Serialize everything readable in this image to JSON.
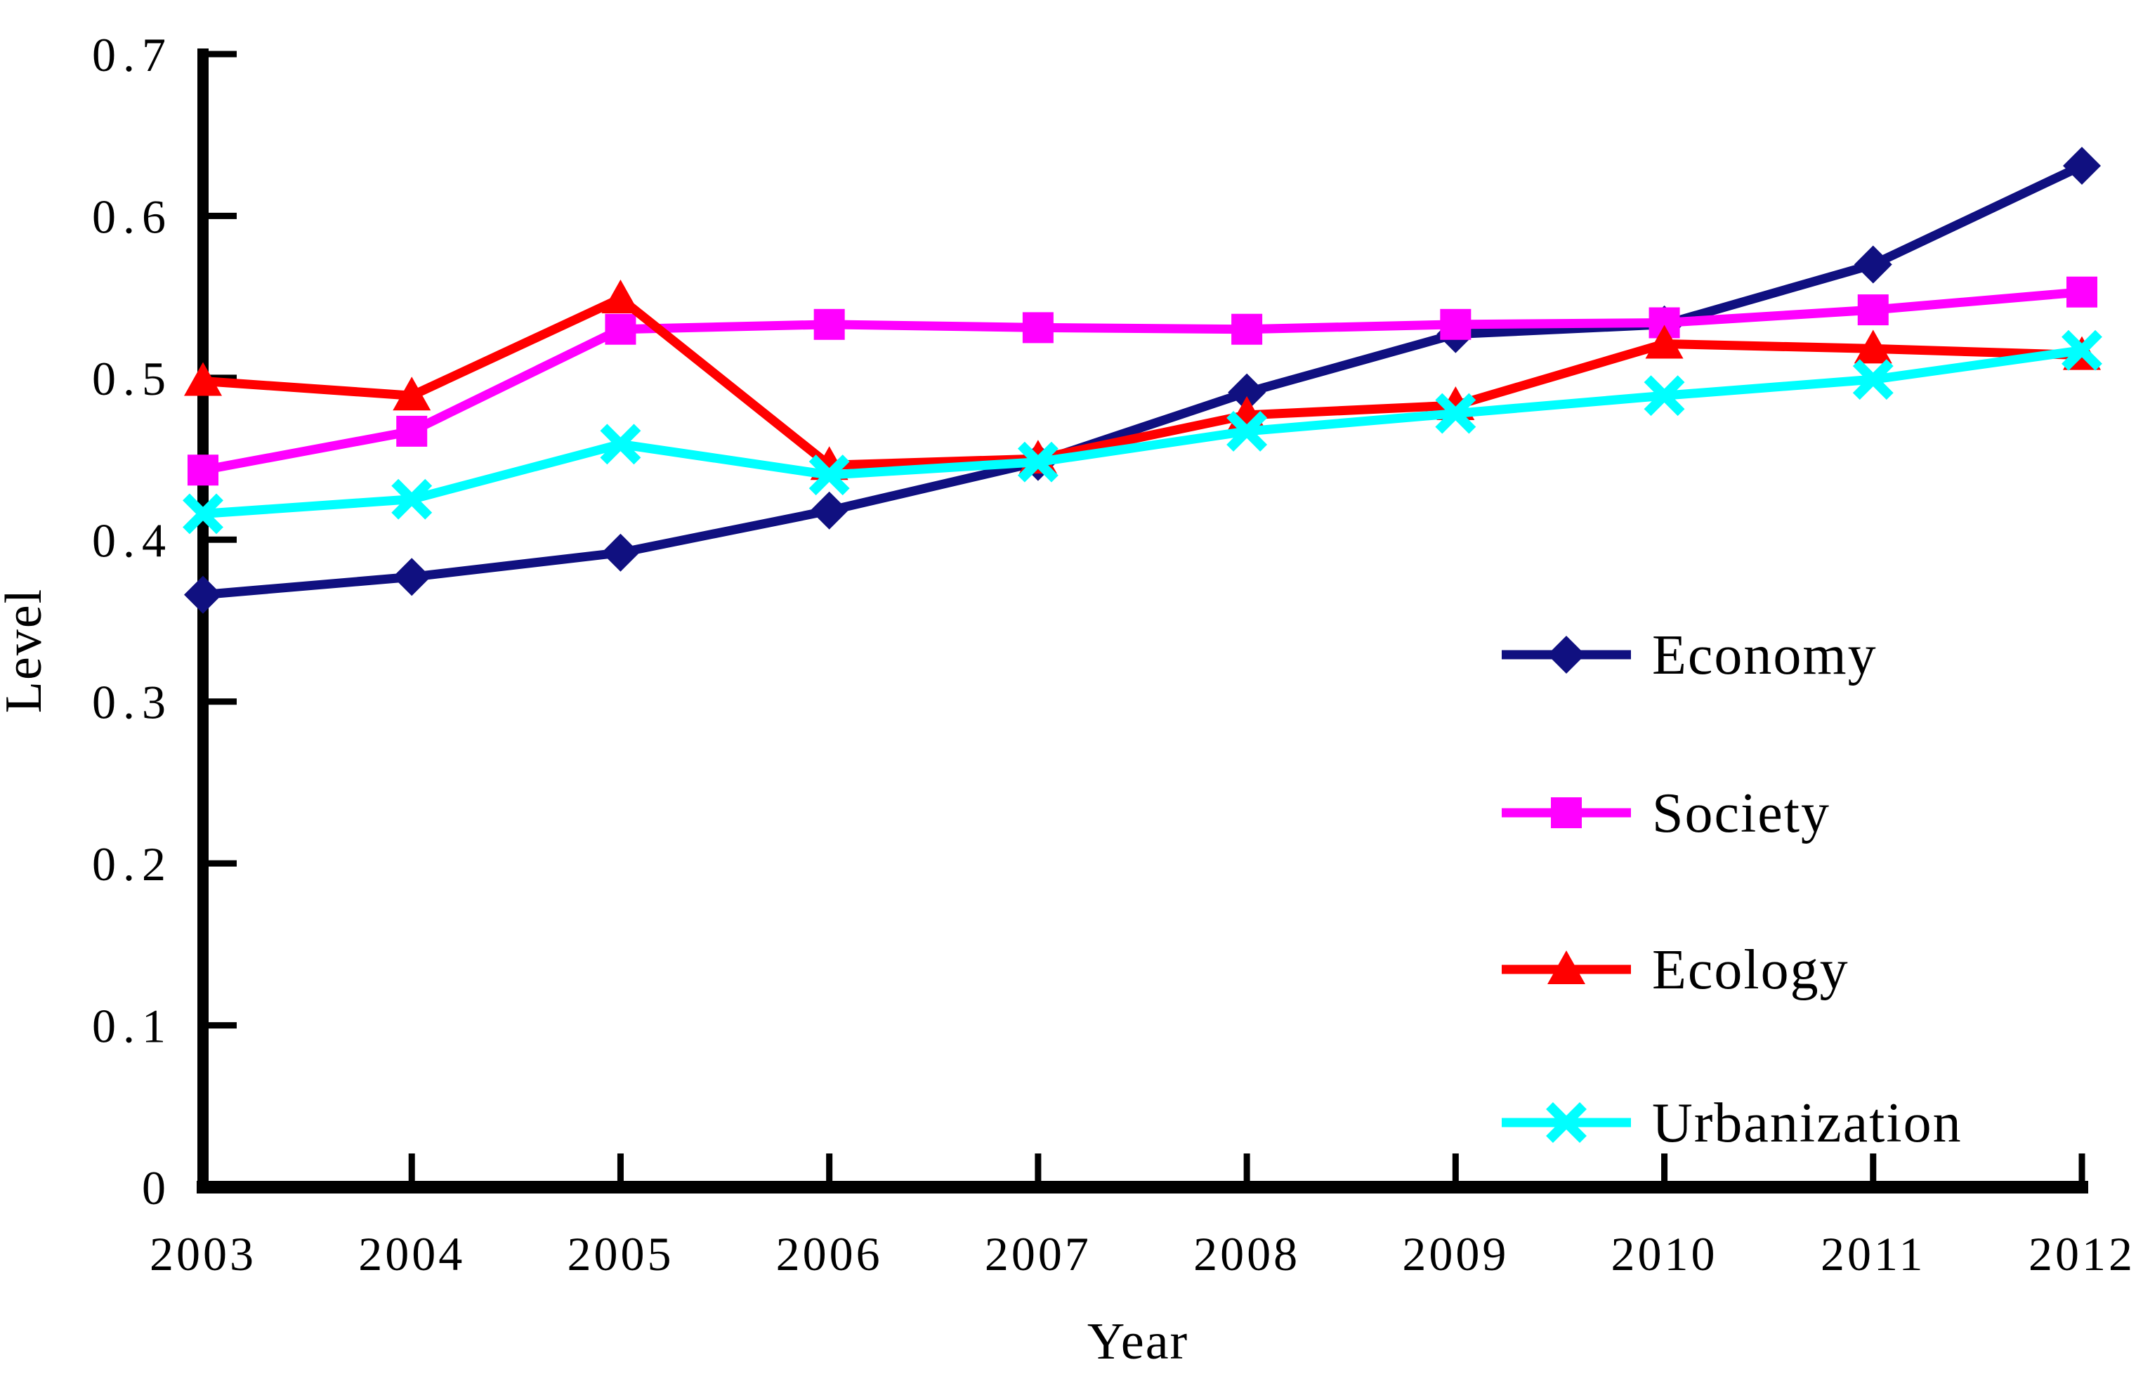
{
  "page": {
    "background_color": "#ffffff",
    "text_color": "#000000",
    "axis_color": "#000000"
  },
  "chart_data": {
    "type": "line",
    "title": "",
    "xlabel": "Year",
    "ylabel": "Level",
    "x_categories": [
      "2003",
      "2004",
      "2005",
      "2006",
      "2007",
      "2008",
      "2009",
      "2010",
      "2011",
      "2012"
    ],
    "ylim": [
      0,
      0.7
    ],
    "yticks": [
      0,
      0.1,
      0.2,
      0.3,
      0.4,
      0.5,
      0.6,
      0.7
    ],
    "ytick_labels": [
      "0",
      "0.1",
      "0.2",
      "0.3",
      "0.4",
      "0.5",
      "0.6",
      "0.7"
    ],
    "grid": false,
    "legend_position": "inside-right",
    "legend_entries": [
      "Economy",
      "Society",
      "Ecology",
      "Urbanization"
    ],
    "series": [
      {
        "name": "Economy",
        "color": "#101080",
        "marker": "diamond",
        "values": [
          0.366,
          0.377,
          0.392,
          0.418,
          0.448,
          0.491,
          0.527,
          0.533,
          0.57,
          0.631
        ]
      },
      {
        "name": "Society",
        "color": "#FF00FF",
        "marker": "square",
        "values": [
          0.443,
          0.467,
          0.53,
          0.533,
          0.531,
          0.53,
          0.533,
          0.534,
          0.542,
          0.553
        ]
      },
      {
        "name": "Ecology",
        "color": "#FF0000",
        "marker": "triangle",
        "values": [
          0.498,
          0.489,
          0.549,
          0.446,
          0.45,
          0.477,
          0.483,
          0.521,
          0.518,
          0.514
        ]
      },
      {
        "name": "Urbanization",
        "color": "#00FFFF",
        "marker": "x",
        "values": [
          0.416,
          0.425,
          0.459,
          0.44,
          0.448,
          0.467,
          0.478,
          0.489,
          0.499,
          0.517
        ]
      }
    ]
  }
}
